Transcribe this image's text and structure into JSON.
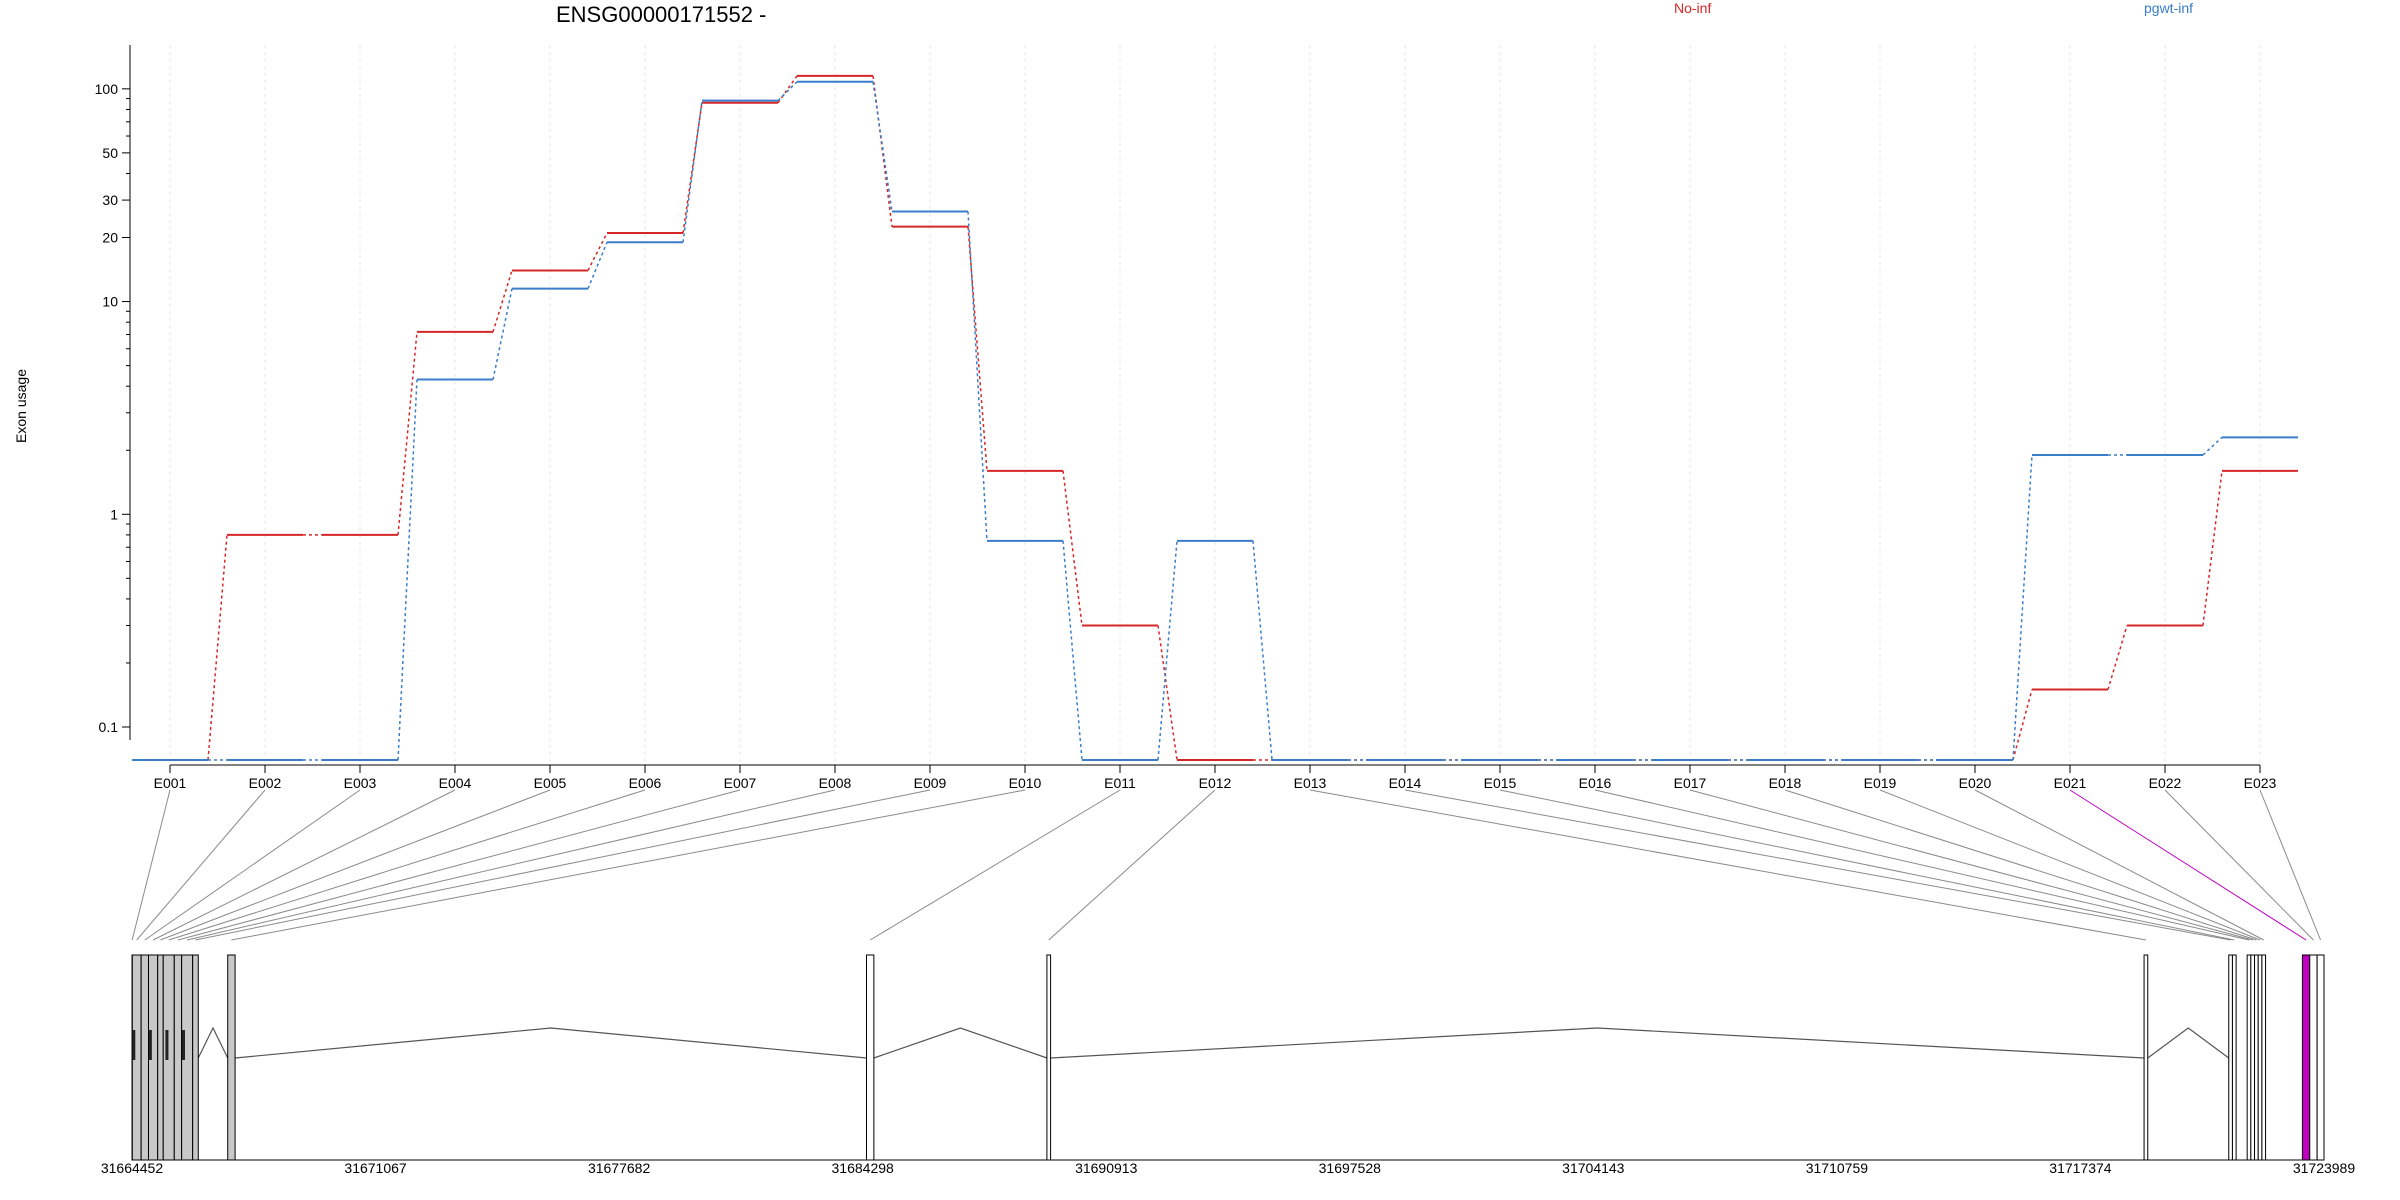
{
  "chart_data": {
    "type": "line",
    "title": "ENSG00000171552 -",
    "ylabel": "Exon usage",
    "y_scale": "log",
    "y_ticks": [
      0.1,
      1,
      10,
      20,
      30,
      50,
      100
    ],
    "ylim": [
      0.07,
      130
    ],
    "grid": "vertical dotted",
    "legend_placement": "top",
    "categories": [
      "E001",
      "E002",
      "E003",
      "E004",
      "E005",
      "E006",
      "E007",
      "E008",
      "E009",
      "E010",
      "E011",
      "E012",
      "E013",
      "E014",
      "E015",
      "E016",
      "E017",
      "E018",
      "E019",
      "E020",
      "E021",
      "E022",
      "E023"
    ],
    "series": [
      {
        "name": "No-inf",
        "color": "#d62728",
        "values": [
          0.07,
          0.8,
          0.8,
          7.2,
          14,
          21,
          86,
          115,
          22.5,
          1.6,
          0.3,
          0.07,
          0.07,
          0.07,
          0.07,
          0.07,
          0.07,
          0.07,
          0.07,
          0.07,
          0.15,
          0.3,
          1.6
        ]
      },
      {
        "name": "pgwt-inf",
        "color": "#3a7dc9",
        "values": [
          0.07,
          0.07,
          0.07,
          4.3,
          11.5,
          19,
          88,
          108,
          26.5,
          0.75,
          0.07,
          0.75,
          0.07,
          0.07,
          0.07,
          0.07,
          0.07,
          0.07,
          0.07,
          0.07,
          1.9,
          1.9,
          2.3
        ]
      }
    ],
    "genomic_axis": {
      "ticks": [
        "31664452",
        "31671067",
        "31677682",
        "31684298",
        "31690913",
        "31697528",
        "31704143",
        "31710759",
        "31717374",
        "31723989"
      ],
      "start": 31664452,
      "end": 31723989
    },
    "exon_regions": [
      {
        "id": "E001",
        "start": 31664452,
        "end": 31664460
      },
      {
        "id": "E002",
        "start": 31664460,
        "end": 31664700
      },
      {
        "id": "E003",
        "start": 31664700,
        "end": 31664900
      },
      {
        "id": "E004",
        "start": 31664900,
        "end": 31665150
      },
      {
        "id": "E005",
        "start": 31665150,
        "end": 31665300
      },
      {
        "id": "E006",
        "start": 31665300,
        "end": 31665600
      },
      {
        "id": "E007",
        "start": 31665600,
        "end": 31665800
      },
      {
        "id": "E008",
        "start": 31665800,
        "end": 31666100
      },
      {
        "id": "E009",
        "start": 31666100,
        "end": 31666252
      },
      {
        "id": "E010",
        "start": 31667052,
        "end": 31667252
      },
      {
        "id": "E011",
        "start": 31684402,
        "end": 31684602
      },
      {
        "id": "E012",
        "start": 31689302,
        "end": 31689402
      },
      {
        "id": "E013",
        "start": 31719102,
        "end": 31719202
      },
      {
        "id": "E014",
        "start": 31721402,
        "end": 31721502
      },
      {
        "id": "E015",
        "start": 31721502,
        "end": 31721602
      },
      {
        "id": "E016",
        "start": 31721902,
        "end": 31722002
      },
      {
        "id": "E017",
        "start": 31722002,
        "end": 31722102
      },
      {
        "id": "E018",
        "start": 31722102,
        "end": 31722202
      },
      {
        "id": "E019",
        "start": 31722202,
        "end": 31722302
      },
      {
        "id": "E020",
        "start": 31722302,
        "end": 31722402
      },
      {
        "id": "E021",
        "start": 31723402,
        "end": 31723602,
        "color": "#c000c0"
      },
      {
        "id": "E022",
        "start": 31723602,
        "end": 31723802
      },
      {
        "id": "E023",
        "start": 31723802,
        "end": 31723989
      }
    ]
  },
  "colors": {
    "no_inf": "#d62728",
    "pgwt_inf": "#3a7dc9",
    "highlight": "#c000c0",
    "exon_fill": "#c8c8c8"
  }
}
